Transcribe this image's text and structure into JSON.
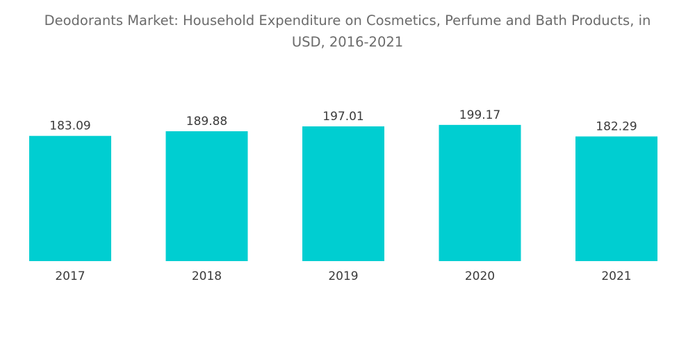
{
  "title_lines": [
    "Deodorants Market: Household Expenditure on Cosmetics, Perfume and Bath Products, in",
    "USD, 2016-2021"
  ],
  "chart_data": {
    "type": "bar",
    "title": "Deodorants Market: Household Expenditure on Cosmetics, Perfume and Bath Products, in USD, 2016-2021",
    "categories": [
      "2017",
      "2018",
      "2019",
      "2020",
      "2021"
    ],
    "values": [
      183.09,
      189.88,
      197.01,
      199.17,
      182.29
    ],
    "data_labels": [
      "183.09",
      "189.88",
      "197.01",
      "199.17",
      "182.29"
    ],
    "xlabel": "",
    "ylabel": "",
    "grid": false,
    "legend": "none",
    "bar_color": "#00CED1"
  }
}
